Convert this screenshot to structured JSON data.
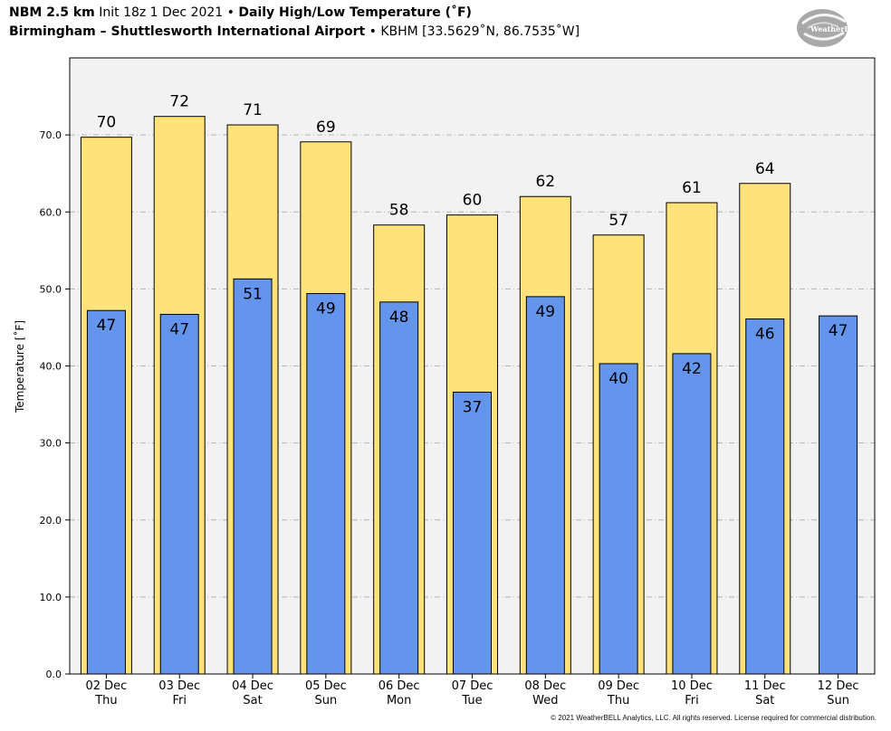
{
  "header": {
    "model": "NBM 2.5 km",
    "init": "Init 18z 1 Dec 2021",
    "bullet": "•",
    "product": "Daily High/Low Temperature (˚F)",
    "station": "Birmingham – Shuttlesworth International Airport",
    "station_id": "KBHM [33.5629˚N, 86.7535˚W]"
  },
  "logo": {
    "text": "WeatherBELL"
  },
  "footer": {
    "copyright": "© 2021 WeatherBELL Analytics, LLC. All rights reserved. License required for commercial distribution."
  },
  "colors": {
    "high": "#ffe37a",
    "low": "#6495ed",
    "plot_bg": "#f2f2f2",
    "grid": "#b4b4b4"
  },
  "chart_data": {
    "type": "bar",
    "ylabel": "Temperature [˚F]",
    "ylim": [
      0,
      80
    ],
    "yticks": [
      0,
      10,
      20,
      30,
      40,
      50,
      60,
      70
    ],
    "ytick_labels": [
      "0.0",
      "10.0",
      "20.0",
      "30.0",
      "40.0",
      "50.0",
      "60.0",
      "70.0"
    ],
    "grid": true,
    "categories": [
      [
        "02 Dec",
        "Thu"
      ],
      [
        "03 Dec",
        "Fri"
      ],
      [
        "04 Dec",
        "Sat"
      ],
      [
        "05 Dec",
        "Sun"
      ],
      [
        "06 Dec",
        "Mon"
      ],
      [
        "07 Dec",
        "Tue"
      ],
      [
        "08 Dec",
        "Wed"
      ],
      [
        "09 Dec",
        "Thu"
      ],
      [
        "10 Dec",
        "Fri"
      ],
      [
        "11 Dec",
        "Sat"
      ],
      [
        "12 Dec",
        "Sun"
      ]
    ],
    "series": [
      {
        "values": [
          69.7,
          72.4,
          71.3,
          69.1,
          58.3,
          59.6,
          62.0,
          57.0,
          61.2,
          63.7,
          null
        ],
        "labels": [
          "70",
          "72",
          "71",
          "69",
          "58",
          "60",
          "62",
          "57",
          "61",
          "64",
          ""
        ]
      },
      {
        "values": [
          47.2,
          46.7,
          51.3,
          49.4,
          48.3,
          36.6,
          49.0,
          40.3,
          41.6,
          46.1,
          46.5
        ],
        "labels": [
          "47",
          "47",
          "51",
          "49",
          "48",
          "37",
          "49",
          "40",
          "42",
          "46",
          "47"
        ]
      }
    ]
  }
}
